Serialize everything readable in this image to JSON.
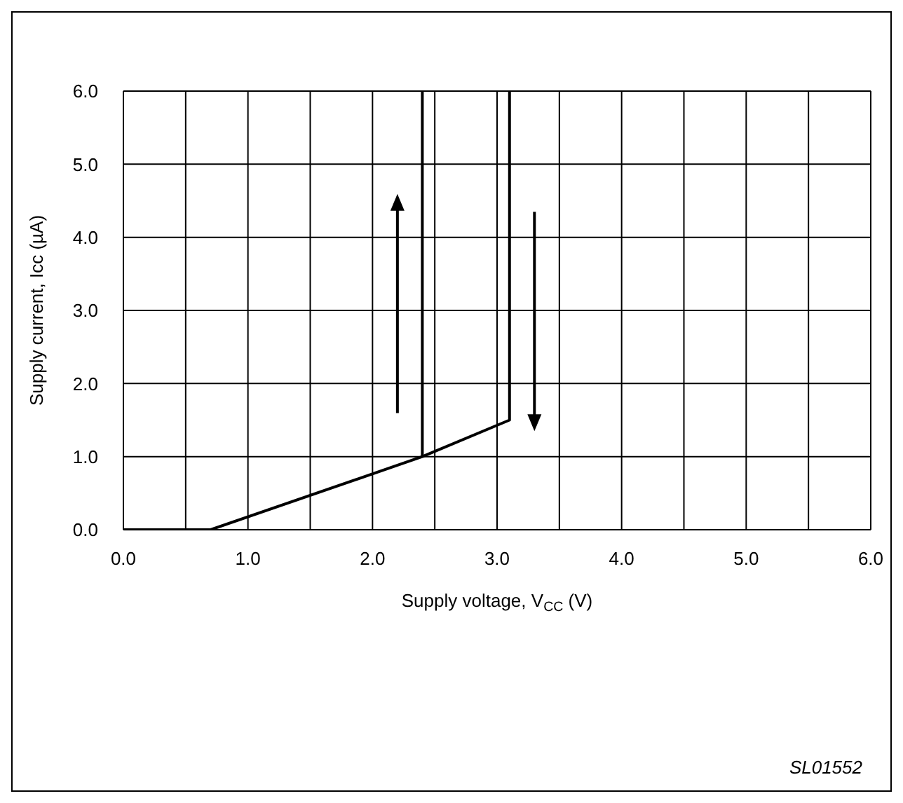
{
  "chart_data": {
    "type": "line",
    "xlabel": "Supply voltage, V$_{CC}$ (V)",
    "ylabel": "Supply current, Icc (µA)",
    "series": [
      {
        "color": "#000000",
        "x": [
          0,
          0.7,
          2.4,
          2.4
        ],
        "values": [
          0,
          0,
          1.0,
          6.0
        ]
      },
      {
        "color": "#000000",
        "x": [
          2.4,
          3.1,
          3.1
        ],
        "values": [
          1.0,
          1.5,
          6.0
        ]
      }
    ],
    "xlim": [
      0,
      6
    ],
    "ylim": [
      0,
      6
    ],
    "xticks": [
      {
        "value": 0,
        "label": "0.0"
      },
      {
        "value": 0.5,
        "label": null
      },
      {
        "value": 1,
        "label": "1.0"
      },
      {
        "value": 1.5,
        "label": null
      },
      {
        "value": 2,
        "label": "2.0"
      },
      {
        "value": 2.5,
        "label": null
      },
      {
        "value": 3,
        "label": "3.0"
      },
      {
        "value": 3.5,
        "label": null
      },
      {
        "value": 4,
        "label": "4.0"
      },
      {
        "value": 4.5,
        "label": null
      },
      {
        "value": 5,
        "label": "5.0"
      },
      {
        "value": 5.5,
        "label": null
      },
      {
        "value": 6,
        "label": "6.0"
      }
    ],
    "yticks": [
      {
        "value": 0,
        "label": "0.0"
      },
      {
        "value": 1,
        "label": "1.0"
      },
      {
        "value": 2,
        "label": "2.0"
      },
      {
        "value": 3,
        "label": "3.0"
      },
      {
        "value": 4,
        "label": "4.0"
      },
      {
        "value": 5,
        "label": "5.0"
      },
      {
        "value": 6,
        "label": "6.0"
      }
    ],
    "grid": true,
    "legend": false,
    "marker": "none",
    "line_style": "solid",
    "annotations": [
      "SL01552"
    ]
  }
}
